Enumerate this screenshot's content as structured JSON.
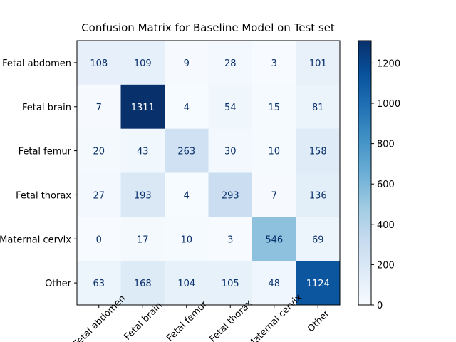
{
  "chart_data": {
    "type": "heatmap",
    "title": "Confusion Matrix for Baseline Model on Test set",
    "x_categories": [
      "Fetal abdomen",
      "Fetal brain",
      "Fetal femur",
      "Fetal thorax",
      "Maternal cervix",
      "Other"
    ],
    "y_categories": [
      "Fetal abdomen",
      "Fetal brain",
      "Fetal femur",
      "Fetal thorax",
      "Maternal cervix",
      "Other"
    ],
    "values": [
      [
        108,
        109,
        9,
        28,
        3,
        101
      ],
      [
        7,
        1311,
        4,
        54,
        15,
        81
      ],
      [
        20,
        43,
        263,
        30,
        10,
        158
      ],
      [
        27,
        193,
        4,
        293,
        7,
        136
      ],
      [
        0,
        17,
        10,
        3,
        546,
        69
      ],
      [
        63,
        168,
        104,
        105,
        48,
        1124
      ]
    ],
    "colormap": "Blues",
    "clim": [
      0,
      1311
    ],
    "cticks": [
      0,
      200,
      400,
      600,
      800,
      1000,
      1200
    ]
  }
}
